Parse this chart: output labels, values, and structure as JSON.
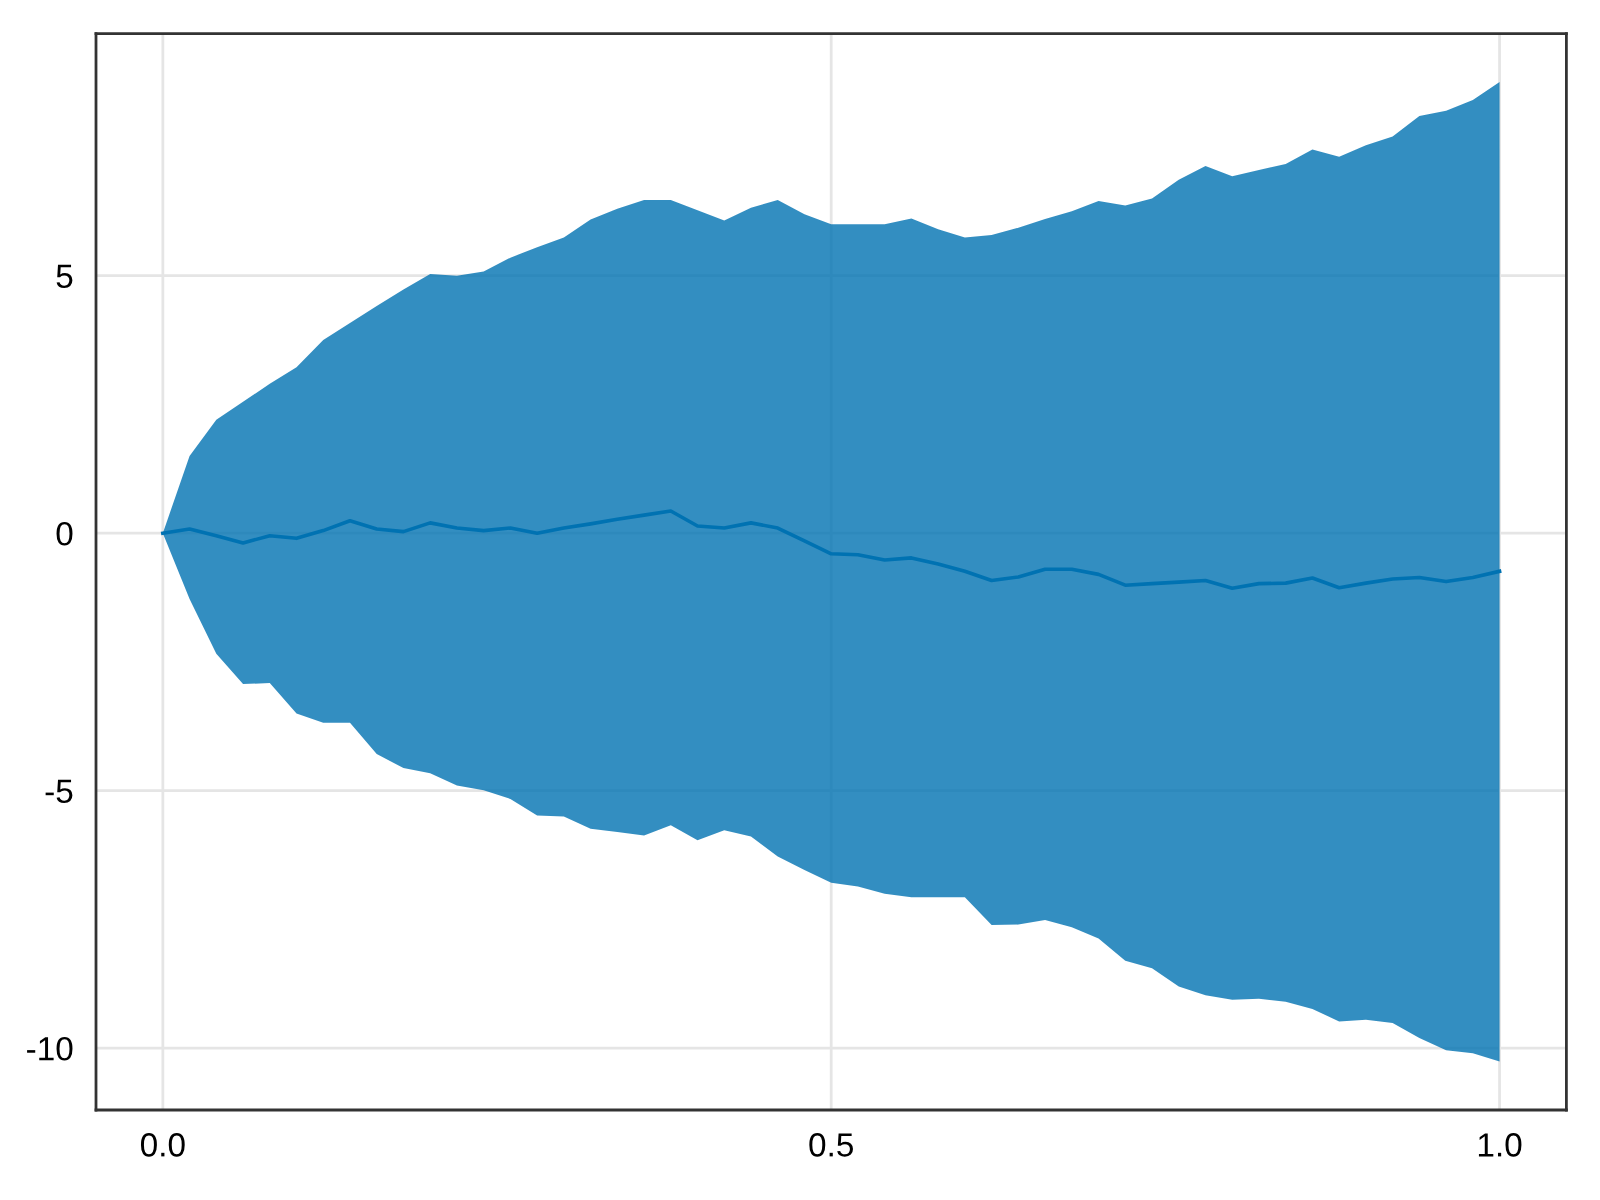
{
  "chart_data": {
    "type": "line",
    "x": [
      0,
      0.02,
      0.04,
      0.06,
      0.08,
      0.1,
      0.12,
      0.14,
      0.16,
      0.18,
      0.2,
      0.22,
      0.24,
      0.26,
      0.28,
      0.3,
      0.32,
      0.34,
      0.36,
      0.38,
      0.4,
      0.42,
      0.44,
      0.46,
      0.48,
      0.5,
      0.52,
      0.54,
      0.56,
      0.58,
      0.6,
      0.62,
      0.64,
      0.66,
      0.68,
      0.7,
      0.72,
      0.74,
      0.76,
      0.78,
      0.8,
      0.82,
      0.84,
      0.86,
      0.88,
      0.9,
      0.92,
      0.94,
      0.96,
      0.98,
      1.0
    ],
    "series": [
      {
        "color": "#0072b2",
        "values": [
          0,
          0.08,
          -0.05,
          -0.19,
          -0.05,
          -0.1,
          0.05,
          0.24,
          0.08,
          0.03,
          0.2,
          0.1,
          0.05,
          0.1,
          0,
          0.1,
          0.18,
          0.27,
          0.35,
          0.43,
          0.14,
          0.1,
          0.2,
          0.1,
          -0.15,
          -0.4,
          -0.42,
          -0.52,
          -0.48,
          -0.6,
          -0.74,
          -0.92,
          -0.85,
          -0.7,
          -0.7,
          -0.8,
          -1.01,
          -0.98,
          -0.95,
          -0.92,
          -1.07,
          -0.98,
          -0.97,
          -0.87,
          -1.06,
          -0.97,
          -0.89,
          -0.86,
          -0.94,
          -0.86,
          -0.74
        ],
        "upper": [
          0,
          1.5,
          2.2,
          2.55,
          2.9,
          3.22,
          3.75,
          4.08,
          4.41,
          4.73,
          5.03,
          5.0,
          5.08,
          5.35,
          5.55,
          5.74,
          6.09,
          6.3,
          6.47,
          6.47,
          6.27,
          6.07,
          6.32,
          6.47,
          6.19,
          6.0,
          6.0,
          6.0,
          6.11,
          5.9,
          5.74,
          5.79,
          5.93,
          6.1,
          6.25,
          6.45,
          6.36,
          6.5,
          6.86,
          7.13,
          6.93,
          7.05,
          7.17,
          7.45,
          7.31,
          7.53,
          7.7,
          8.1,
          8.2,
          8.41,
          8.76
        ],
        "lower": [
          0,
          -1.28,
          -2.34,
          -2.93,
          -2.91,
          -3.5,
          -3.68,
          -3.68,
          -4.29,
          -4.56,
          -4.66,
          -4.9,
          -4.99,
          -5.16,
          -5.48,
          -5.5,
          -5.74,
          -5.8,
          -5.87,
          -5.67,
          -5.96,
          -5.77,
          -5.89,
          -6.28,
          -6.54,
          -6.79,
          -6.86,
          -7.0,
          -7.07,
          -7.07,
          -7.07,
          -7.61,
          -7.6,
          -7.51,
          -7.65,
          -7.87,
          -8.3,
          -8.45,
          -8.8,
          -8.97,
          -9.06,
          -9.04,
          -9.1,
          -9.24,
          -9.48,
          -9.45,
          -9.51,
          -9.8,
          -10.04,
          -10.1,
          -10.26
        ]
      }
    ],
    "xlim": [
      -0.05,
      1.05
    ],
    "ylim": [
      -11.2,
      9.7
    ],
    "xticks": [
      {
        "value": 0,
        "label": "0.0"
      },
      {
        "value": 0.5,
        "label": "0.5"
      },
      {
        "value": 1,
        "label": "1.0"
      }
    ],
    "yticks": [
      -10,
      -5,
      0,
      5
    ],
    "grid": true
  }
}
